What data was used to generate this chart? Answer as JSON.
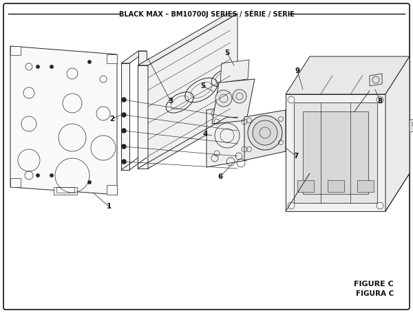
{
  "title": "BLACK MAX – BM10700J SERIES / SÉRIE / SERIE",
  "figure_label": "FIGURE C",
  "figura_label": "FIGURA C",
  "bg_color": "#ffffff",
  "border_color": "#111111",
  "line_color": "#222222",
  "lw": 0.7
}
